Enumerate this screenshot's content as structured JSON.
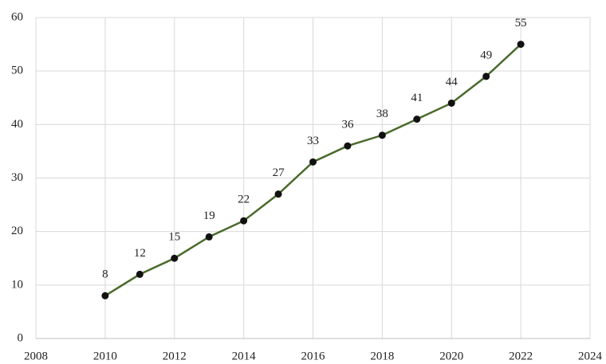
{
  "chart_data": {
    "type": "line",
    "x": [
      2010,
      2011,
      2012,
      2013,
      2014,
      2015,
      2016,
      2017,
      2018,
      2019,
      2020,
      2021,
      2022
    ],
    "values": [
      8,
      12,
      15,
      19,
      22,
      27,
      33,
      36,
      38,
      41,
      44,
      49,
      55
    ],
    "color": "#4a6a2c",
    "marker_color": "#111111",
    "xlim": [
      2008,
      2024
    ],
    "xticks": [
      2008,
      2010,
      2012,
      2014,
      2016,
      2018,
      2020,
      2022,
      2024
    ],
    "ylim": [
      0,
      60
    ],
    "yticks": [
      0,
      10,
      20,
      30,
      40,
      50,
      60
    ],
    "grid": true,
    "data_labels": true
  }
}
